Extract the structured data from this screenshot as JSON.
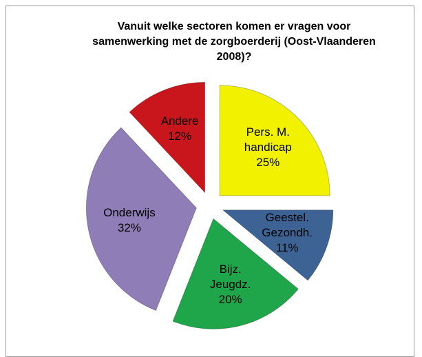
{
  "chart_data": {
    "type": "pie",
    "title": "Vanuit welke sectoren komen er vragen voor samenwerking met de zorgboerderij (Oost-Vlaanderen 2008)?",
    "categories": [
      "Pers. M. handicap",
      "Geestel. Gezondh.",
      "Bijz. Jeugdz.",
      "Onderwijs",
      "Andere"
    ],
    "values": [
      25,
      11,
      20,
      32,
      12
    ],
    "value_labels": [
      "25%",
      "11%",
      "20%",
      "32%",
      "12%"
    ],
    "colors": [
      "#f2f200",
      "#3d6394",
      "#1fa64a",
      "#8f7db8",
      "#c8161c"
    ]
  }
}
